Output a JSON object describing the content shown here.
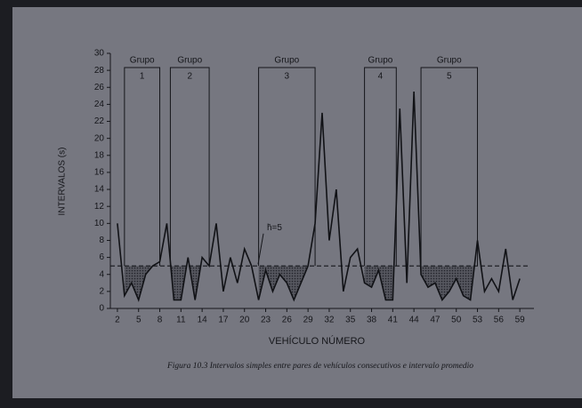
{
  "chart_data": {
    "type": "line",
    "y_label": "INTERVALOS (s)",
    "x_label": "VEHÍCULO NÚMERO",
    "caption": "Figura 10.3 Intervalos simples entre pares de vehículos consecutivos e intervalo promedio",
    "x": [
      2,
      3,
      4,
      5,
      6,
      7,
      8,
      9,
      10,
      11,
      12,
      13,
      14,
      15,
      16,
      17,
      18,
      19,
      20,
      21,
      22,
      23,
      24,
      25,
      26,
      27,
      28,
      29,
      30,
      31,
      32,
      33,
      34,
      35,
      36,
      37,
      38,
      39,
      40,
      41,
      42,
      43,
      44,
      45,
      46,
      47,
      48,
      49,
      50,
      51,
      52,
      53,
      54,
      55,
      56,
      57,
      58,
      59
    ],
    "values": [
      10,
      1.5,
      3,
      1,
      4,
      5,
      5.5,
      10,
      1,
      1,
      6,
      1,
      6,
      5,
      10,
      2,
      6,
      3,
      7,
      5,
      1,
      4.5,
      2,
      4,
      3,
      1,
      3,
      5,
      10,
      23,
      8,
      14,
      2,
      6,
      7,
      3,
      2.5,
      4.5,
      1,
      1,
      23.5,
      3,
      25.5,
      4,
      2.5,
      3,
      1,
      2,
      3.5,
      1.5,
      1,
      8,
      2,
      3.5,
      2,
      7,
      1,
      3.5
    ],
    "color": "#111216",
    "mean": {
      "value": 5,
      "label": "h̄=5"
    },
    "groups": [
      {
        "label": "Grupo",
        "number": 1,
        "start": 3,
        "end": 8
      },
      {
        "label": "Grupo",
        "number": 2,
        "start": 9.5,
        "end": 15
      },
      {
        "label": "Grupo",
        "number": 3,
        "start": 22,
        "end": 30
      },
      {
        "label": "Grupo",
        "number": 4,
        "start": 37,
        "end": 41.5
      },
      {
        "label": "Grupo",
        "number": 5,
        "start": 45,
        "end": 53
      }
    ],
    "xlim": [
      1,
      61
    ],
    "ylim": [
      0,
      30
    ],
    "xticks": [
      2,
      5,
      8,
      11,
      14,
      17,
      20,
      23,
      26,
      29,
      32,
      35,
      38,
      41,
      44,
      47,
      50,
      53,
      56,
      59
    ],
    "yticks": [
      0,
      2,
      4,
      6,
      8,
      10,
      12,
      14,
      16,
      18,
      20,
      22,
      24,
      26,
      28,
      30
    ]
  }
}
